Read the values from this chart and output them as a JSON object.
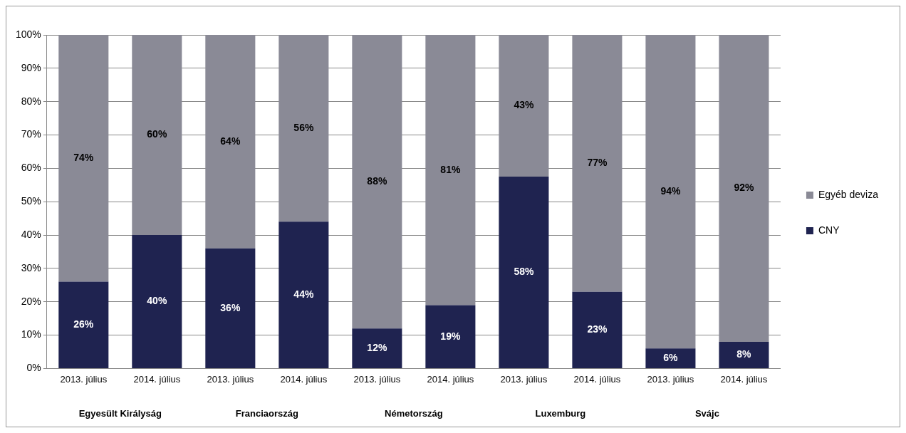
{
  "chart_data": {
    "type": "bar",
    "stacked": true,
    "categories": [
      "2013. július",
      "2014. július",
      "2013. július",
      "2014. július",
      "2013. július",
      "2014. július",
      "2013. július",
      "2014. július",
      "2013. július",
      "2014. július"
    ],
    "series": [
      {
        "name": "CNY",
        "color": "#1f2350",
        "values": [
          26,
          40,
          36,
          44,
          12,
          19,
          57.5,
          23,
          6,
          8
        ],
        "value_labels": [
          "26%",
          "40%",
          "36%",
          "44%",
          "12%",
          "19%",
          "58%",
          "23%",
          "6%",
          "8%"
        ]
      },
      {
        "name": "Egyéb deviza",
        "color": "#8a8a96",
        "values": [
          74,
          60,
          64,
          56,
          88,
          81,
          42.5,
          77,
          94,
          92
        ],
        "value_labels": [
          "74%",
          "60%",
          "64%",
          "56%",
          "88%",
          "81%",
          "43%",
          "77%",
          "94%",
          "92%"
        ]
      }
    ],
    "ylim": [
      0,
      100
    ],
    "yticks": [
      {
        "value": 0,
        "label": "0%"
      },
      {
        "value": 10,
        "label": "10%"
      },
      {
        "value": 20,
        "label": "20%"
      },
      {
        "value": 30,
        "label": "30%"
      },
      {
        "value": 40,
        "label": "40%"
      },
      {
        "value": 50,
        "label": "50%"
      },
      {
        "value": 60,
        "label": "60%"
      },
      {
        "value": 70,
        "label": "70%"
      },
      {
        "value": 80,
        "label": "80%"
      },
      {
        "value": 90,
        "label": "90%"
      },
      {
        "value": 100,
        "label": "100%"
      }
    ],
    "grid": "y",
    "legend": "right",
    "annotations": [
      "Egyesült Királyság",
      "Franciaország",
      "Németország",
      "Luxemburg",
      "Svájc"
    ]
  }
}
